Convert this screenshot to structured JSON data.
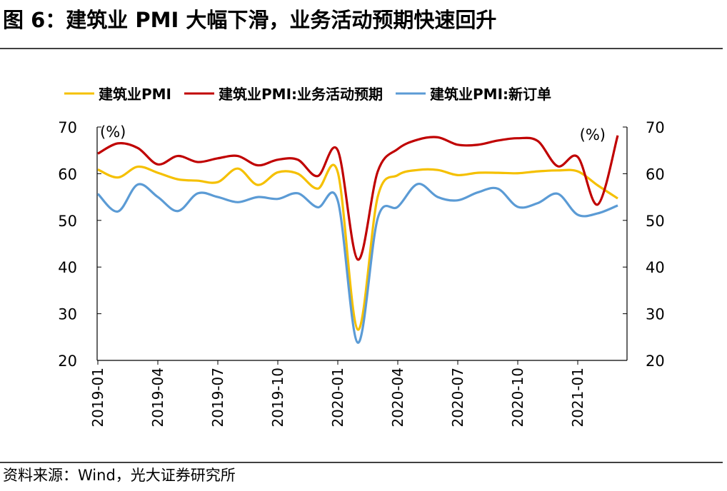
{
  "chart_data": {
    "type": "line",
    "title": "图 6：建筑业 PMI 大幅下滑，业务活动预期快速回升",
    "source": "资料来源：Wind，光大证券研究所",
    "y_label": "(%)",
    "y2_label": "(%)",
    "categories": [
      "2019-01",
      null,
      null,
      "2019-04",
      null,
      null,
      "2019-07",
      null,
      null,
      "2019-10",
      null,
      null,
      "2020-01",
      null,
      null,
      "2020-04",
      null,
      null,
      "2020-07",
      null,
      null,
      "2020-10",
      null,
      null,
      "2021-01",
      null,
      null
    ],
    "ylim": [
      20,
      70
    ],
    "yticks": [
      20,
      30,
      40,
      50,
      60,
      70
    ],
    "y2lim": [
      20,
      70
    ],
    "y2ticks": [
      20,
      30,
      40,
      50,
      60,
      70
    ],
    "series": [
      {
        "name": "建筑业PMI",
        "color": "#f5c000",
        "values": [
          60.9,
          59.2,
          61.5,
          60.2,
          58.8,
          58.5,
          58.2,
          61.1,
          57.6,
          60.3,
          60.0,
          56.8,
          60.3,
          26.6,
          55.1,
          59.7,
          60.8,
          60.8,
          59.7,
          60.2,
          60.2,
          60.1,
          60.5,
          60.7,
          60.5,
          57.5,
          54.7
        ]
      },
      {
        "name": "建筑业PMI:业务活动预期",
        "color": "#c00000",
        "axis": "y2",
        "values": [
          64.3,
          66.5,
          65.5,
          62.0,
          63.8,
          62.5,
          63.3,
          63.8,
          61.8,
          63.0,
          63.0,
          59.5,
          65.0,
          41.6,
          60.5,
          65.3,
          67.3,
          67.8,
          66.2,
          66.2,
          67.1,
          67.6,
          67.0,
          61.6,
          63.6,
          53.4,
          68.2
        ]
      },
      {
        "name": "建筑业PMI:新订单",
        "color": "#5b9bd5",
        "values": [
          55.7,
          51.9,
          57.7,
          55.0,
          52.0,
          55.8,
          55.0,
          53.9,
          55.0,
          54.6,
          55.8,
          52.8,
          54.2,
          23.8,
          50.5,
          52.9,
          57.8,
          55.0,
          54.3,
          56.0,
          56.8,
          52.9,
          53.7,
          55.7,
          51.2,
          51.5,
          53.2
        ]
      }
    ]
  }
}
